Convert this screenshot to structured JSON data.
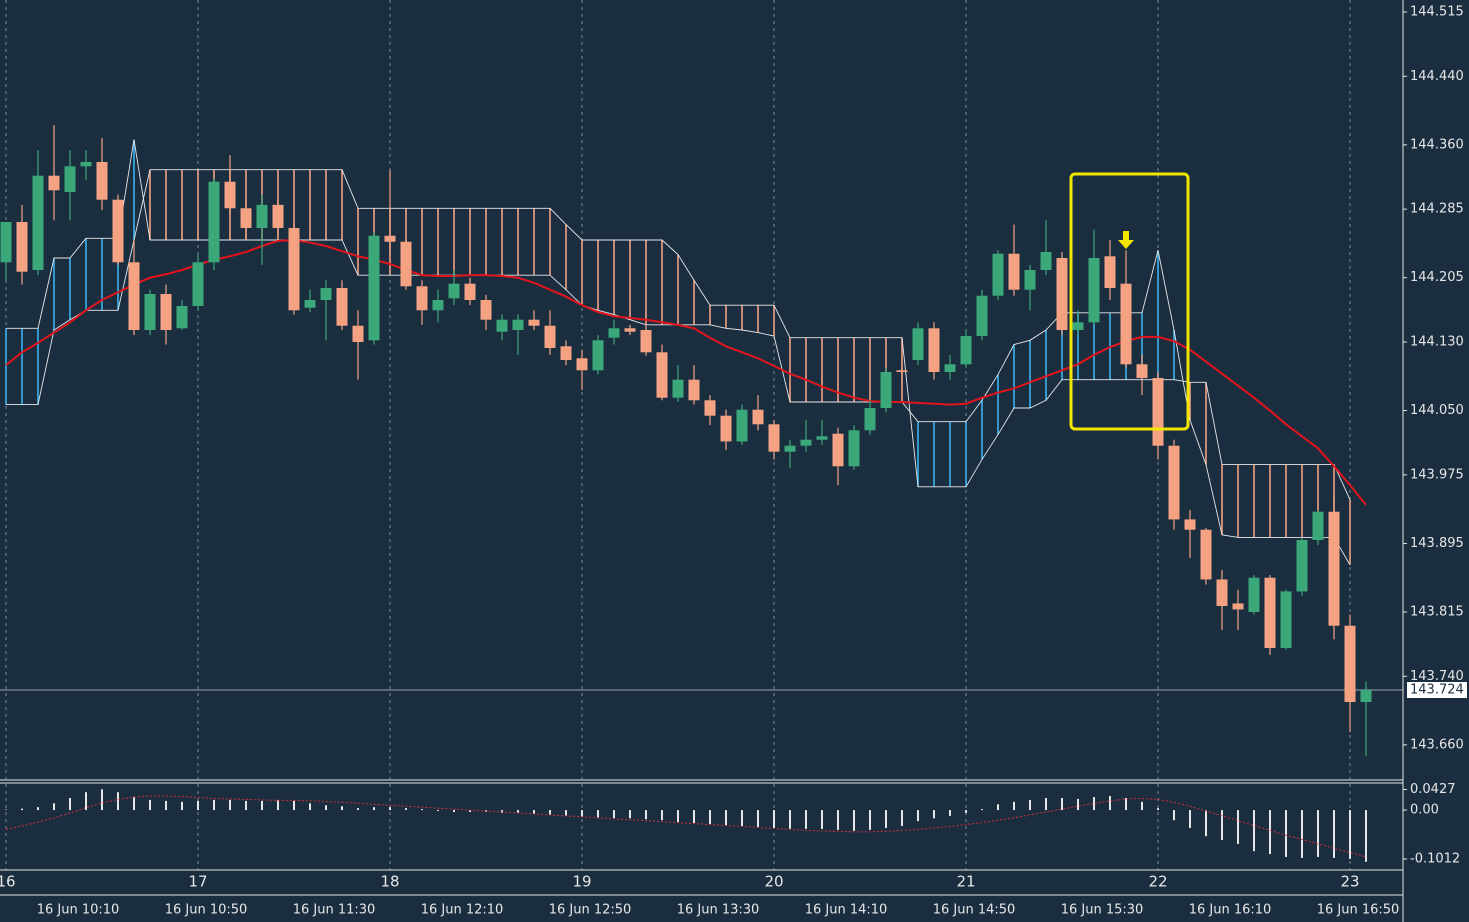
{
  "chart_data": [
    {
      "type": "candlestick",
      "day_labels": [
        "16",
        "17",
        "18",
        "19",
        "20",
        "21",
        "22",
        "23"
      ],
      "time_labels": [
        "16 Jun 10:10",
        "16 Jun 10:50",
        "16 Jun 11:30",
        "16 Jun 12:10",
        "16 Jun 12:50",
        "16 Jun 13:30",
        "16 Jun 14:10",
        "16 Jun 14:50",
        "16 Jun 15:30",
        "16 Jun 16:10",
        "16 Jun 16:50"
      ],
      "open": [
        144.223,
        144.27,
        144.214,
        144.324,
        144.305,
        144.335,
        144.34,
        144.296,
        144.223,
        144.144,
        144.186,
        144.146,
        144.172,
        144.223,
        144.317,
        144.286,
        144.263,
        144.29,
        144.263,
        144.17,
        144.179,
        144.193,
        144.149,
        144.132,
        144.254,
        144.247,
        144.195,
        144.167,
        144.181,
        144.198,
        144.179,
        144.142,
        144.144,
        144.156,
        144.149,
        144.125,
        144.111,
        144.097,
        144.135,
        144.146,
        144.144,
        144.118,
        144.065,
        144.086,
        144.062,
        144.044,
        144.014,
        144.051,
        144.034,
        144.002,
        144.009,
        144.016,
        144.023,
        143.985,
        144.027,
        144.053,
        144.097,
        144.109,
        144.146,
        144.095,
        144.104,
        144.137,
        144.184,
        144.233,
        144.191,
        144.214,
        144.228,
        144.144,
        144.153,
        144.23,
        144.198,
        144.104,
        144.088,
        144.009,
        143.923,
        143.911,
        143.853,
        143.825,
        143.815,
        143.855,
        143.773,
        143.839,
        143.899,
        143.932,
        143.799,
        143.71
      ],
      "high": [
        144.27,
        144.29,
        144.354,
        144.383,
        144.354,
        144.354,
        144.368,
        144.302,
        144.249,
        144.191,
        144.197,
        144.179,
        144.232,
        144.321,
        144.348,
        144.296,
        144.302,
        144.296,
        144.267,
        144.191,
        144.202,
        144.202,
        144.167,
        144.258,
        144.331,
        144.249,
        144.202,
        144.191,
        144.214,
        144.205,
        144.185,
        144.162,
        144.162,
        144.167,
        144.167,
        144.132,
        144.121,
        144.138,
        144.156,
        144.15,
        144.15,
        144.127,
        144.103,
        144.103,
        144.068,
        144.051,
        144.057,
        144.068,
        144.039,
        144.016,
        144.039,
        144.039,
        144.03,
        144.033,
        144.062,
        144.1,
        144.103,
        144.153,
        144.153,
        144.115,
        144.144,
        144.191,
        144.237,
        144.267,
        144.22,
        144.272,
        144.235,
        144.167,
        144.261,
        144.249,
        144.237,
        144.115,
        144.095,
        144.016,
        143.934,
        143.913,
        143.864,
        143.841,
        143.858,
        143.858,
        143.841,
        143.902,
        143.934,
        143.946,
        143.812,
        143.734
      ],
      "low": [
        144.202,
        144.197,
        144.208,
        144.272,
        144.272,
        144.319,
        144.284,
        144.22,
        144.138,
        144.138,
        144.127,
        144.144,
        144.167,
        144.214,
        144.278,
        144.249,
        144.22,
        144.255,
        144.162,
        144.165,
        144.132,
        144.144,
        144.086,
        144.127,
        144.232,
        144.191,
        144.15,
        144.153,
        144.173,
        144.173,
        144.144,
        144.132,
        144.115,
        144.144,
        144.115,
        144.103,
        144.074,
        144.092,
        144.127,
        144.138,
        144.114,
        144.062,
        144.06,
        144.057,
        144.033,
        144.004,
        144.01,
        144.027,
        143.993,
        143.983,
        144.002,
        144.01,
        143.963,
        143.981,
        144.022,
        144.048,
        144.086,
        144.103,
        144.086,
        144.086,
        144.1,
        144.132,
        144.179,
        144.184,
        144.167,
        144.208,
        144.138,
        144.138,
        144.15,
        144.179,
        144.1,
        144.068,
        143.993,
        143.911,
        143.878,
        143.847,
        143.794,
        143.794,
        143.812,
        143.765,
        143.771,
        143.834,
        143.893,
        143.783,
        143.675,
        143.647
      ],
      "close": [
        144.27,
        144.212,
        144.324,
        144.307,
        144.335,
        144.34,
        144.296,
        144.223,
        144.144,
        144.186,
        144.144,
        144.172,
        144.223,
        144.317,
        144.286,
        144.263,
        144.29,
        144.263,
        144.167,
        144.179,
        144.193,
        144.149,
        144.13,
        144.254,
        144.247,
        144.195,
        144.167,
        144.179,
        144.198,
        144.179,
        144.156,
        144.156,
        144.156,
        144.149,
        144.123,
        144.109,
        144.097,
        144.132,
        144.146,
        144.142,
        144.118,
        144.065,
        144.086,
        144.062,
        144.044,
        144.014,
        144.051,
        144.034,
        144.002,
        144.009,
        144.016,
        144.02,
        143.985,
        144.027,
        144.053,
        144.095,
        144.095,
        144.146,
        144.095,
        144.104,
        144.137,
        144.184,
        144.233,
        144.191,
        144.214,
        144.235,
        144.144,
        144.153,
        144.228,
        144.193,
        144.104,
        144.088,
        144.009,
        143.923,
        143.911,
        143.853,
        143.822,
        143.818,
        143.855,
        143.773,
        143.839,
        143.899,
        143.932,
        143.799,
        143.71,
        143.724
      ],
      "up_color": "#3aa878",
      "down_color": "#f5a283",
      "ma": {
        "color": "#e3141c",
        "values": [
          144.103,
          144.118,
          144.129,
          144.141,
          144.153,
          144.167,
          144.179,
          144.188,
          144.197,
          144.205,
          144.209,
          144.214,
          144.22,
          144.226,
          144.23,
          144.235,
          144.242,
          144.248,
          144.249,
          144.246,
          144.242,
          144.236,
          144.23,
          144.226,
          144.221,
          144.214,
          144.208,
          144.207,
          144.207,
          144.208,
          144.208,
          144.207,
          144.205,
          144.199,
          144.191,
          144.183,
          144.173,
          144.165,
          144.16,
          144.158,
          144.156,
          144.153,
          144.15,
          144.146,
          144.135,
          144.125,
          144.118,
          144.111,
          144.102,
          144.093,
          144.086,
          144.078,
          144.071,
          144.065,
          144.061,
          144.06,
          144.06,
          144.059,
          144.058,
          144.057,
          144.058,
          144.065,
          144.071,
          144.076,
          144.083,
          144.09,
          144.097,
          144.104,
          144.115,
          144.124,
          144.131,
          144.136,
          144.136,
          144.131,
          144.121,
          144.107,
          144.093,
          144.079,
          144.065,
          144.05,
          144.034,
          144.02,
          144.006,
          143.985,
          143.963,
          143.94
        ]
      },
      "cloud": {
        "line_color": "#e8e8e8",
        "up_color": "#3ab4ee",
        "down_color": "#f5a283",
        "span_a": [
          144.146,
          144.146,
          144.146,
          144.228,
          144.228,
          144.251,
          144.251,
          144.251,
          144.366,
          144.249,
          144.249,
          144.249,
          144.249,
          144.249,
          144.249,
          144.249,
          144.249,
          144.249,
          144.249,
          144.249,
          144.249,
          144.249,
          144.208,
          144.208,
          144.208,
          144.208,
          144.208,
          144.208,
          144.208,
          144.208,
          144.208,
          144.208,
          144.208,
          144.208,
          144.208,
          144.191,
          144.173,
          144.167,
          144.162,
          144.156,
          144.15,
          144.15,
          144.15,
          144.15,
          144.15,
          144.146,
          144.144,
          144.141,
          144.137,
          144.06,
          144.06,
          144.06,
          144.06,
          144.06,
          144.06,
          144.06,
          144.06,
          144.037,
          144.037,
          144.037,
          144.037,
          144.062,
          144.092,
          144.127,
          144.132,
          144.144,
          144.164,
          144.164,
          144.164,
          144.164,
          144.164,
          144.164,
          144.237,
          144.144,
          144.039,
          143.987,
          143.905,
          143.902,
          143.902,
          143.902,
          143.902,
          143.902,
          143.902,
          143.902,
          143.87,
          null
        ],
        "span_b": [
          144.057,
          144.057,
          144.057,
          144.144,
          144.156,
          144.167,
          144.167,
          144.167,
          144.249,
          144.331,
          144.331,
          144.331,
          144.331,
          144.331,
          144.331,
          144.331,
          144.331,
          144.331,
          144.331,
          144.331,
          144.331,
          144.331,
          144.286,
          144.286,
          144.286,
          144.286,
          144.286,
          144.286,
          144.286,
          144.286,
          144.286,
          144.286,
          144.286,
          144.286,
          144.286,
          144.267,
          144.249,
          144.249,
          144.249,
          144.249,
          144.249,
          144.249,
          144.232,
          144.202,
          144.173,
          144.173,
          144.173,
          144.173,
          144.173,
          144.135,
          144.135,
          144.135,
          144.135,
          144.135,
          144.135,
          144.135,
          144.135,
          143.961,
          143.961,
          143.961,
          143.961,
          143.993,
          144.022,
          144.053,
          144.053,
          144.062,
          144.086,
          144.086,
          144.086,
          144.086,
          144.086,
          144.086,
          144.086,
          144.086,
          144.083,
          144.083,
          143.987,
          143.987,
          143.987,
          143.987,
          143.987,
          143.987,
          143.987,
          143.987,
          143.946,
          null
        ]
      },
      "last_price": 143.724,
      "ylim": [
        143.619,
        144.529
      ],
      "yticks": [
        144.515,
        {
          "value": 144.44,
          "label": "144.440"
        },
        {
          "value": 144.36,
          "label": "144.360"
        },
        144.285,
        144.205,
        {
          "value": 144.13,
          "label": "144.130"
        },
        {
          "value": 144.05,
          "label": "144.050"
        },
        143.975,
        143.895,
        143.815,
        {
          "value": 143.74,
          "label": "143.740"
        },
        {
          "value": 143.66,
          "label": "143.660"
        }
      ]
    },
    {
      "type": "bar",
      "color": "#e6e6e6",
      "values": [
        0.001,
        0.003,
        0.006,
        0.014,
        0.025,
        0.037,
        0.043,
        0.037,
        0.027,
        0.021,
        0.019,
        0.017,
        0.019,
        0.021,
        0.021,
        0.019,
        0.019,
        0.021,
        0.019,
        0.014,
        0.01,
        0.008,
        0.004,
        0.006,
        0.006,
        0.004,
        0.002,
        -0.002,
        -0.004,
        -0.004,
        -0.004,
        -0.006,
        -0.006,
        -0.008,
        -0.01,
        -0.012,
        -0.014,
        -0.017,
        -0.017,
        -0.017,
        -0.019,
        -0.021,
        -0.025,
        -0.027,
        -0.029,
        -0.033,
        -0.033,
        -0.035,
        -0.037,
        -0.039,
        -0.039,
        -0.039,
        -0.041,
        -0.043,
        -0.041,
        -0.037,
        -0.033,
        -0.023,
        -0.017,
        -0.012,
        -0.006,
        0.002,
        0.012,
        0.017,
        0.021,
        0.025,
        0.025,
        0.023,
        0.027,
        0.029,
        0.025,
        0.017,
        0.004,
        -0.021,
        -0.037,
        -0.054,
        -0.062,
        -0.07,
        -0.085,
        -0.091,
        -0.097,
        -0.099,
        -0.097,
        -0.099,
        -0.101,
        -0.107
      ],
      "signal": {
        "color": "#d0303a",
        "values": [
          -0.04,
          -0.033,
          -0.025,
          -0.016,
          -0.006,
          0.005,
          0.015,
          0.022,
          0.027,
          0.029,
          0.029,
          0.028,
          0.026,
          0.024,
          0.023,
          0.022,
          0.021,
          0.02,
          0.02,
          0.019,
          0.018,
          0.016,
          0.014,
          0.012,
          0.01,
          0.008,
          0.006,
          0.004,
          0.002,
          0.0,
          -0.002,
          -0.004,
          -0.006,
          -0.008,
          -0.01,
          -0.012,
          -0.014,
          -0.016,
          -0.018,
          -0.02,
          -0.022,
          -0.024,
          -0.026,
          -0.028,
          -0.03,
          -0.032,
          -0.034,
          -0.036,
          -0.038,
          -0.04,
          -0.042,
          -0.043,
          -0.044,
          -0.045,
          -0.045,
          -0.044,
          -0.042,
          -0.04,
          -0.037,
          -0.034,
          -0.03,
          -0.026,
          -0.021,
          -0.016,
          -0.01,
          -0.004,
          0.002,
          0.008,
          0.014,
          0.019,
          0.023,
          0.024,
          0.022,
          0.016,
          0.008,
          -0.002,
          -0.012,
          -0.022,
          -0.032,
          -0.042,
          -0.052,
          -0.061,
          -0.07,
          -0.079,
          -0.088,
          -0.097
        ]
      },
      "ylim": [
        -0.124,
        0.056
      ],
      "yticks": [
        0.0427,
        {
          "value": 0,
          "label": "0.00"
        },
        -0.1012
      ]
    }
  ]
}
